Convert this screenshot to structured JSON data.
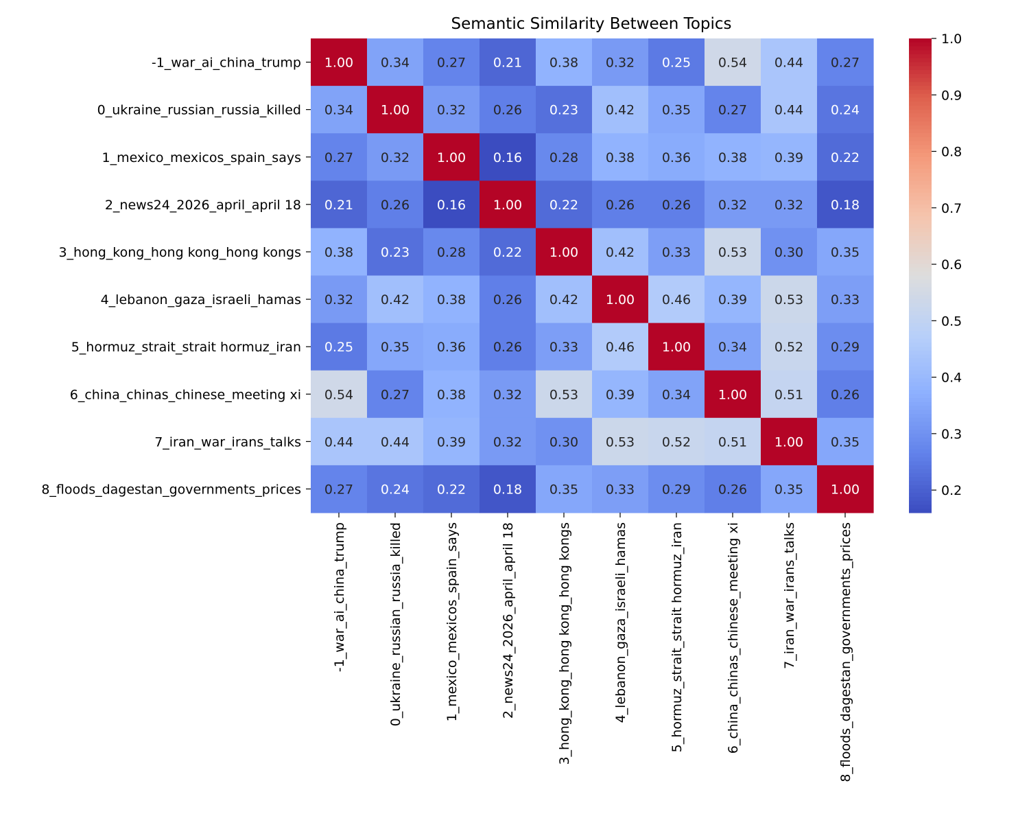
{
  "chart_data": {
    "type": "heatmap",
    "title": "Semantic Similarity Between Topics",
    "xlabel": "",
    "ylabel": "",
    "row_labels": [
      "-1_war_ai_china_trump",
      "0_ukraine_russian_russia_killed",
      "1_mexico_mexicos_spain_says",
      "2_news24_2026_april_april 18",
      "3_hong_kong_hong kong_hong kongs",
      "4_lebanon_gaza_israeli_hamas",
      "5_hormuz_strait_strait hormuz_iran",
      "6_china_chinas_chinese_meeting xi",
      "7_iran_war_irans_talks",
      "8_floods_dagestan_governments_prices"
    ],
    "col_labels": [
      "-1_war_ai_china_trump",
      "0_ukraine_russian_russia_killed",
      "1_mexico_mexicos_spain_says",
      "2_news24_2026_april_april 18",
      "3_hong_kong_hong kong_hong kongs",
      "4_lebanon_gaza_israeli_hamas",
      "5_hormuz_strait_strait hormuz_iran",
      "6_china_chinas_chinese_meeting xi",
      "7_iran_war_irans_talks",
      "8_floods_dagestan_governments_prices"
    ],
    "values": [
      [
        1.0,
        0.34,
        0.27,
        0.21,
        0.38,
        0.32,
        0.25,
        0.54,
        0.44,
        0.27
      ],
      [
        0.34,
        1.0,
        0.32,
        0.26,
        0.23,
        0.42,
        0.35,
        0.27,
        0.44,
        0.24
      ],
      [
        0.27,
        0.32,
        1.0,
        0.16,
        0.28,
        0.38,
        0.36,
        0.38,
        0.39,
        0.22
      ],
      [
        0.21,
        0.26,
        0.16,
        1.0,
        0.22,
        0.26,
        0.26,
        0.32,
        0.32,
        0.18
      ],
      [
        0.38,
        0.23,
        0.28,
        0.22,
        1.0,
        0.42,
        0.33,
        0.53,
        0.3,
        0.35
      ],
      [
        0.32,
        0.42,
        0.38,
        0.26,
        0.42,
        1.0,
        0.46,
        0.39,
        0.53,
        0.33
      ],
      [
        0.25,
        0.35,
        0.36,
        0.26,
        0.33,
        0.46,
        1.0,
        0.34,
        0.52,
        0.29
      ],
      [
        0.54,
        0.27,
        0.38,
        0.32,
        0.53,
        0.39,
        0.34,
        1.0,
        0.51,
        0.26
      ],
      [
        0.44,
        0.44,
        0.39,
        0.32,
        0.3,
        0.53,
        0.52,
        0.51,
        1.0,
        0.35
      ],
      [
        0.27,
        0.24,
        0.22,
        0.18,
        0.35,
        0.33,
        0.29,
        0.26,
        0.35,
        1.0
      ]
    ],
    "value_format_decimals": 2,
    "colormap": "coolwarm",
    "colorbar": {
      "range": [
        0.16,
        1.0
      ],
      "ticks": [
        0.2,
        0.3,
        0.4,
        0.5,
        0.6,
        0.7,
        0.8,
        0.9,
        1.0
      ],
      "tick_labels": [
        "0.2",
        "0.3",
        "0.4",
        "0.5",
        "0.6",
        "0.7",
        "0.8",
        "0.9",
        "1.0"
      ]
    },
    "grid": false,
    "legend": "colorbar-right"
  }
}
